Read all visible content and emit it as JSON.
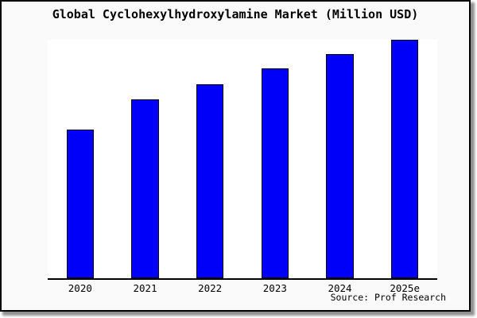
{
  "figure": {
    "background": "#fafafa",
    "page_background": "#ffffff",
    "border_color": "#000000",
    "shadow_color": "#8f8f8f"
  },
  "title": "Global Cyclohexylhydroxylamine Market (Million USD)",
  "source_note": "Source: Prof Research",
  "chart_data": {
    "type": "bar",
    "title": "Global Cyclohexylhydroxylamine Market (Million USD)",
    "categories": [
      "2020",
      "2021",
      "2022",
      "2023",
      "2024",
      "2025e"
    ],
    "values": [
      62.5,
      75,
      81.5,
      88,
      94,
      100
    ],
    "xlabel": "",
    "ylabel": "",
    "ylim": [
      0,
      100
    ],
    "y_axis_visible": false,
    "grid": false,
    "legend": false,
    "bar_fill": "#0000FA",
    "bar_stroke": "#000000",
    "plot_background": "#ffffff",
    "axis_line_color": "#000000",
    "bar_width_fraction": 0.42
  }
}
